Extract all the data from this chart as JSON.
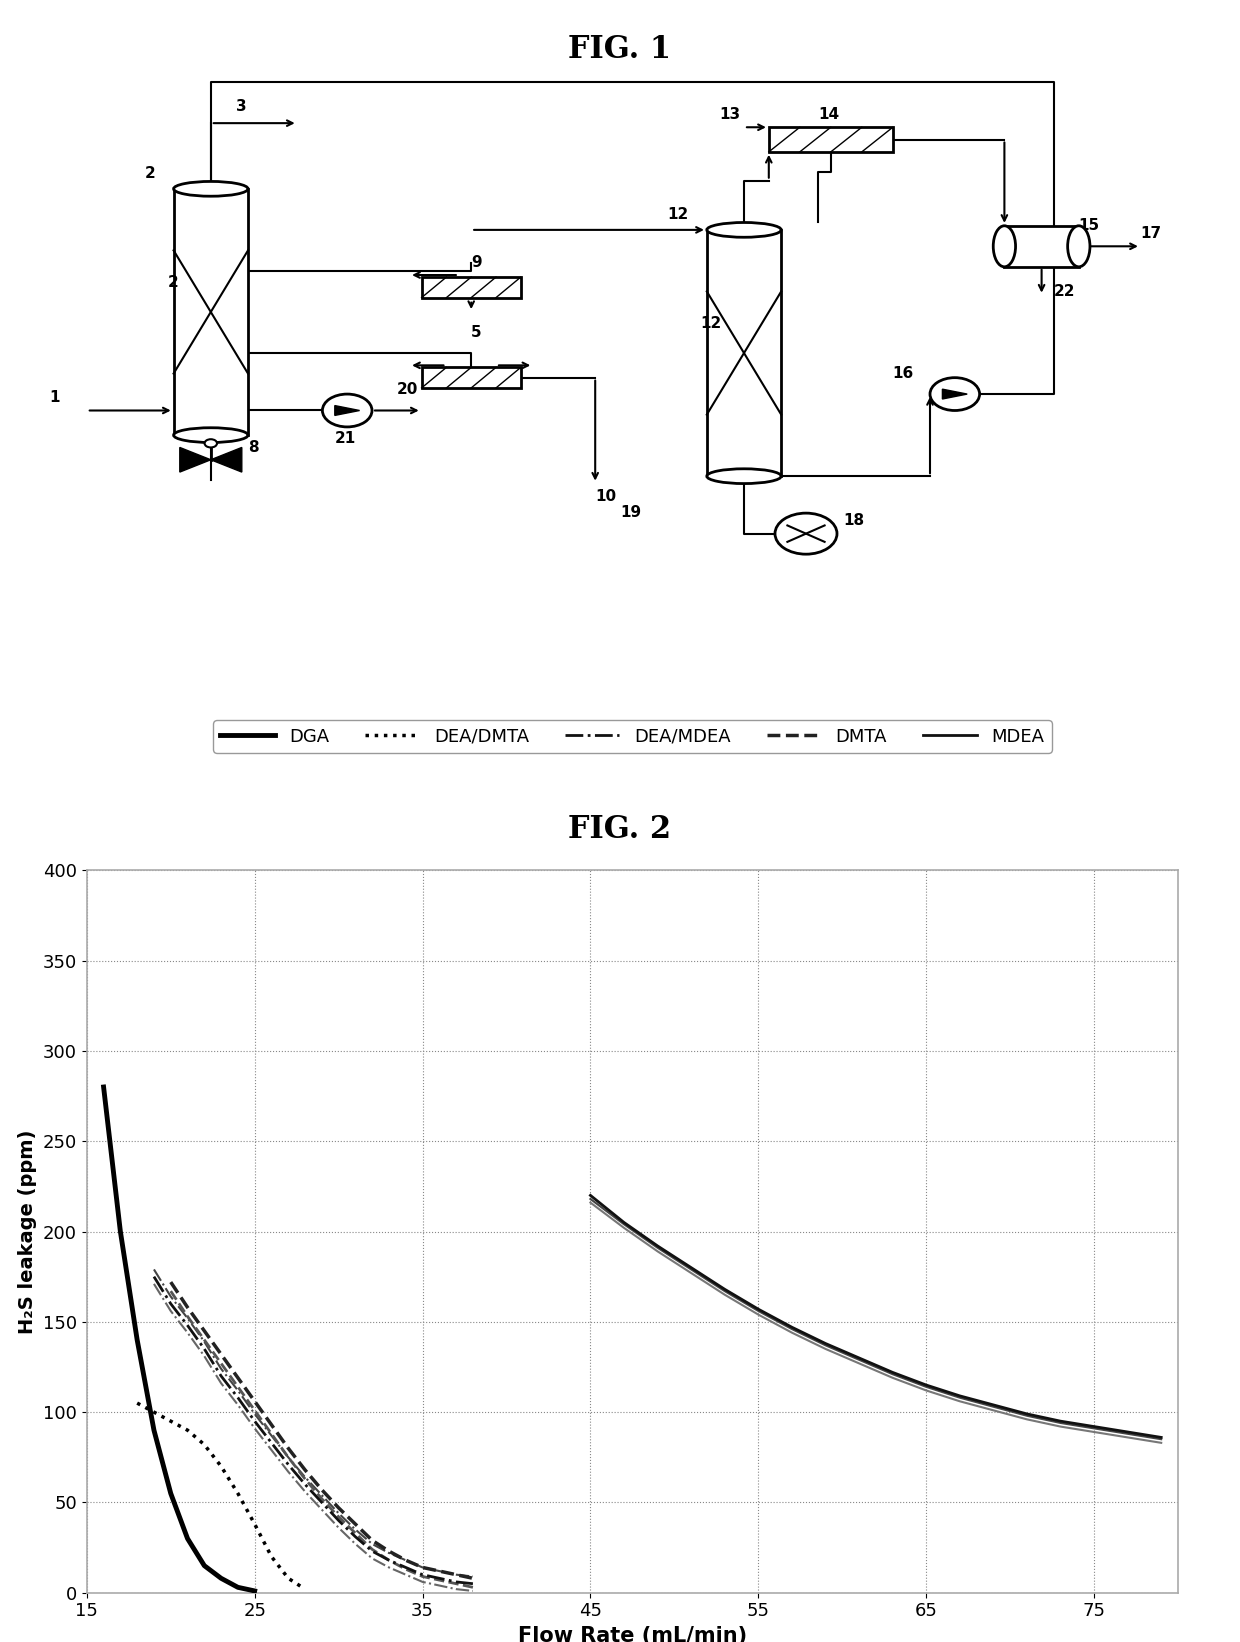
{
  "fig1_title": "FIG. 1",
  "fig2_title": "FIG. 2",
  "chart": {
    "xlabel": "Flow Rate (mL/min)",
    "ylabel": "H₂S leakage (ppm)",
    "xlim": [
      15,
      80
    ],
    "ylim": [
      0,
      400
    ],
    "xticks": [
      15,
      25,
      35,
      45,
      55,
      65,
      75
    ],
    "yticks": [
      0,
      50,
      100,
      150,
      200,
      250,
      300,
      350,
      400
    ],
    "legend_labels": [
      "DGA",
      "DEA/DMTA",
      "DEA/MDEA",
      "DMTA",
      "MDEA"
    ],
    "background_color": "#ffffff",
    "grid_color": "#aaaaaa"
  },
  "curves": {
    "DGA": {
      "x": [
        16,
        17,
        18,
        19,
        20,
        21,
        22,
        23,
        24,
        25
      ],
      "y": [
        280,
        200,
        140,
        90,
        55,
        30,
        15,
        8,
        3,
        1
      ],
      "color": "#000000",
      "linewidth": 3.5,
      "linestyle": "solid"
    },
    "DEA_DMTA": {
      "x": [
        18,
        19,
        20,
        21,
        22,
        23,
        24,
        25,
        26,
        27,
        28
      ],
      "y": [
        105,
        100,
        95,
        90,
        82,
        70,
        55,
        38,
        20,
        8,
        2
      ],
      "color": "#000000",
      "linewidth": 2.0,
      "linestyle": "dotted"
    },
    "DEA_MDEA_1": {
      "x": [
        19,
        20,
        21,
        22,
        23,
        24,
        25,
        26,
        27,
        28,
        29,
        30,
        31,
        32,
        33,
        34,
        35,
        36,
        37,
        38
      ],
      "y": [
        175,
        160,
        148,
        135,
        120,
        108,
        95,
        83,
        71,
        60,
        50,
        40,
        31,
        23,
        18,
        14,
        10,
        8,
        6,
        5
      ],
      "color": "#000000",
      "linewidth": 2.0,
      "linestyle": "dashdot"
    },
    "DMTA_1": {
      "x": [
        20,
        21,
        22,
        23,
        24,
        25,
        26,
        27,
        28,
        29,
        30,
        31,
        32,
        33,
        34,
        35,
        36,
        37,
        38
      ],
      "y": [
        172,
        158,
        145,
        132,
        119,
        106,
        93,
        80,
        68,
        57,
        47,
        38,
        29,
        23,
        18,
        14,
        12,
        10,
        8
      ],
      "color": "#555555",
      "linewidth": 2.0,
      "linestyle": "dashed"
    },
    "MDEA_1": {
      "x": [
        45,
        47,
        49,
        51,
        53,
        55,
        57,
        59,
        61,
        63,
        65,
        67,
        69,
        71,
        73,
        75,
        77,
        79
      ],
      "y": [
        220,
        205,
        192,
        180,
        168,
        157,
        147,
        138,
        130,
        122,
        115,
        109,
        104,
        99,
        95,
        92,
        89,
        86
      ],
      "color": "#333333",
      "linewidth": 2.0,
      "linestyle": "solid"
    },
    "MDEA_2": {
      "x": [
        45,
        47,
        49,
        51,
        53,
        55,
        57,
        59,
        61,
        63,
        65,
        67,
        69,
        71,
        73,
        75,
        77,
        79
      ],
      "y": [
        218,
        204,
        191,
        179,
        167,
        156,
        146,
        137,
        129,
        121,
        114,
        108,
        103,
        98,
        94,
        91,
        88,
        85
      ],
      "color": "#555555",
      "linewidth": 1.5,
      "linestyle": "solid"
    },
    "MDEA_3": {
      "x": [
        45,
        47,
        49,
        51,
        53,
        55,
        57,
        59,
        61,
        63,
        65,
        67,
        69,
        71,
        73,
        75,
        77,
        79
      ],
      "y": [
        216,
        202,
        189,
        177,
        165,
        154,
        144,
        135,
        127,
        119,
        112,
        106,
        101,
        96,
        92,
        89,
        86,
        83
      ],
      "color": "#888888",
      "linewidth": 1.5,
      "linestyle": "solid"
    }
  }
}
